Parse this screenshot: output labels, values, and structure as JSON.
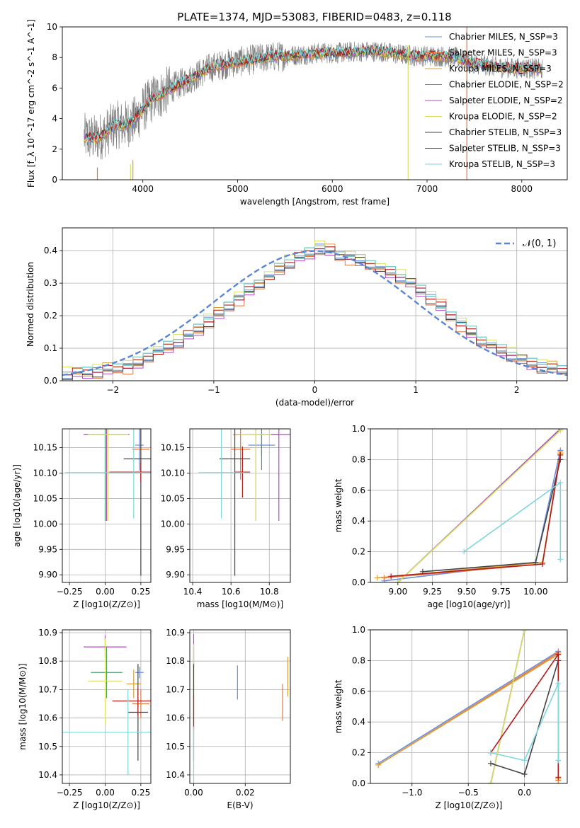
{
  "figure": {
    "title": "PLATE=1374, MJD=53083, FIBERID=0483, z=0.118"
  },
  "colors": {
    "Chabrier MILES": "#6a8ed8",
    "Salpeter MILES": "#e8743b",
    "Kroupa MILES": "#d9a13a",
    "Chabrier ELODIE": "#4f9a6b",
    "Salpeter ELODIE": "#b44bc4",
    "Kroupa ELODIE": "#d8e060",
    "Chabrier STELIB": "#444444",
    "Salpeter STELIB": "#b31b1b",
    "Kroupa STELIB": "#7fd6dd",
    "data": "#808080",
    "gaussian": "#5b86d8"
  },
  "chart_data": [
    {
      "id": "spectrum",
      "type": "line",
      "title": "PLATE=1374, MJD=53083, FIBERID=0483, z=0.118",
      "xlabel": "wavelength [Angstrom, rest frame]",
      "ylabel": "Flux [f_λ 10^-17 erg cm^-2 s^-1 A^-1]",
      "xlim": [
        3150,
        8480
      ],
      "ylim": [
        0,
        10
      ],
      "xticks": [
        4000,
        5000,
        6000,
        7000,
        8000
      ],
      "yticks": [
        0,
        2,
        4,
        6,
        8,
        10
      ],
      "grid": false,
      "legend": "right",
      "legend_entries": [
        "Chabrier MILES, N_SSP=3",
        "Salpeter MILES, N_SSP=3",
        "Kroupa MILES, N_SSP=3",
        "Chabrier ELODIE, N_SSP=2",
        "Salpeter ELODIE, N_SSP=2",
        "Kroupa ELODIE, N_SSP=2",
        "Chabrier STELIB, N_SSP=3",
        "Salpeter STELIB, N_SSP=3",
        "Kroupa STELIB, N_SSP=3"
      ],
      "data_envelope": {
        "x": [
          3380,
          3500,
          3600,
          3700,
          3800,
          3900,
          4000,
          4100,
          4200,
          4300,
          4500,
          4700,
          4900,
          5100,
          5300,
          5500,
          5700,
          5900,
          6100,
          6300,
          6500,
          6700,
          6900,
          7100,
          7300,
          7500,
          7700,
          7900,
          8100,
          8220
        ],
        "y": [
          2.8,
          2.7,
          3.0,
          3.6,
          3.6,
          3.8,
          4.6,
          5.3,
          5.6,
          6.0,
          6.6,
          7.3,
          7.6,
          7.8,
          8.0,
          8.1,
          8.2,
          8.3,
          8.3,
          8.4,
          8.4,
          8.2,
          8.1,
          8.1,
          8.0,
          7.6,
          7.4,
          7.3,
          7.3,
          7.2
        ]
      },
      "vertical_spikes": [
        {
          "x": 3520,
          "y_top": 0.8,
          "series": "Salpeter MILES"
        },
        {
          "x": 3870,
          "y_top": 1.0,
          "series": "Kroupa ELODIE"
        },
        {
          "x": 3895,
          "y_top": 1.3,
          "series": "Kroupa MILES"
        },
        {
          "x": 6800,
          "y_top": 8.8,
          "series": "Kroupa ELODIE"
        },
        {
          "x": 7420,
          "y_top": 10.0,
          "series": "Salpeter MILES"
        }
      ]
    },
    {
      "id": "residuals",
      "type": "step",
      "xlabel": "(data-model)/error",
      "ylabel": "Normed distribution",
      "xlim": [
        -2.5,
        2.5
      ],
      "ylim": [
        0,
        0.47
      ],
      "xticks": [
        -2,
        -1,
        0,
        1,
        2
      ],
      "yticks": [
        0.0,
        0.1,
        0.2,
        0.3,
        0.4
      ],
      "grid": true,
      "legend": "top-right",
      "gaussian_label": "𝒩(0, 1)",
      "bin_edges_start": -2.5,
      "bin_width": 0.1,
      "base_hist": [
        0.02,
        0.025,
        0.028,
        0.03,
        0.035,
        0.04,
        0.045,
        0.055,
        0.075,
        0.09,
        0.105,
        0.12,
        0.14,
        0.16,
        0.185,
        0.205,
        0.23,
        0.255,
        0.28,
        0.3,
        0.32,
        0.345,
        0.365,
        0.38,
        0.395,
        0.41,
        0.4,
        0.385,
        0.38,
        0.37,
        0.36,
        0.345,
        0.335,
        0.32,
        0.3,
        0.28,
        0.255,
        0.23,
        0.2,
        0.175,
        0.15,
        0.125,
        0.11,
        0.095,
        0.08,
        0.065,
        0.055,
        0.045,
        0.04,
        0.035
      ]
    },
    {
      "id": "age-vs-Z",
      "type": "errorbar",
      "xlabel": "Z [log10(Z/Z⊙)]",
      "ylabel": "age  [log10(age/yr)]",
      "xlim": [
        -0.3,
        0.32
      ],
      "ylim": [
        9.885,
        10.187
      ],
      "xticks": [
        -0.25,
        0.0,
        0.25
      ],
      "yticks": [
        9.9,
        9.95,
        10.0,
        10.05,
        10.1,
        10.15
      ],
      "grid": true,
      "points": [
        {
          "series": "Chabrier MILES",
          "x": 0.24,
          "y": 10.155,
          "xerr": 0.03,
          "yerr": 0.05
        },
        {
          "series": "Salpeter MILES",
          "x": 0.25,
          "y": 10.147,
          "xerr": 0.06,
          "yerr": 0.06
        },
        {
          "series": "Kroupa MILES",
          "x": 0.01,
          "y": 10.176,
          "xerr": 0.13,
          "yerr": 0.17
        },
        {
          "series": "Chabrier ELODIE",
          "x": 0.0,
          "y": 10.176,
          "xerr": 0.15,
          "yerr": 0.17
        },
        {
          "series": "Salpeter ELODIE",
          "x": 0.01,
          "y": 10.176,
          "xerr": 0.16,
          "yerr": 0.17
        },
        {
          "series": "Kroupa ELODIE",
          "x": 0.02,
          "y": 10.176,
          "xerr": 0.14,
          "yerr": 0.17
        },
        {
          "series": "Chabrier STELIB",
          "x": 0.25,
          "y": 10.128,
          "xerr": 0.12,
          "yerr": 0.23
        },
        {
          "series": "Salpeter STELIB",
          "x": 0.25,
          "y": 10.102,
          "xerr": 0.22,
          "yerr": 0.02
        },
        {
          "series": "Kroupa STELIB",
          "x": 0.2,
          "y": 10.101,
          "xerr": 0.48,
          "yerr": 0.09
        }
      ]
    },
    {
      "id": "age-vs-mass",
      "type": "errorbar",
      "xlabel": "mass [log10(M/M⊙)]",
      "ylabel": "",
      "xlim": [
        10.385,
        10.91
      ],
      "ylim": [
        9.885,
        10.187
      ],
      "xticks": [
        10.4,
        10.6,
        10.8
      ],
      "yticks": [
        9.9,
        9.95,
        10.0,
        10.05,
        10.1,
        10.15
      ],
      "grid": true,
      "points": [
        {
          "series": "Chabrier MILES",
          "x": 10.76,
          "y": 10.155,
          "xerr": 0.07,
          "yerr": 0.02
        },
        {
          "series": "Salpeter MILES",
          "x": 10.65,
          "y": 10.147,
          "xerr": 0.05,
          "yerr": 0.06
        },
        {
          "series": "Kroupa MILES",
          "x": 10.73,
          "y": 10.176,
          "xerr": 0.12,
          "yerr": 0.17
        },
        {
          "series": "Chabrier ELODIE",
          "x": 10.76,
          "y": 10.176,
          "xerr": 0.09,
          "yerr": 0.07
        },
        {
          "series": "Salpeter ELODIE",
          "x": 10.85,
          "y": 10.176,
          "xerr": 0.09,
          "yerr": 0.17
        },
        {
          "series": "Kroupa ELODIE",
          "x": 10.73,
          "y": 10.176,
          "xerr": 0.08,
          "yerr": 0.17
        },
        {
          "series": "Chabrier STELIB",
          "x": 10.62,
          "y": 10.128,
          "xerr": 0.08,
          "yerr": 0.23
        },
        {
          "series": "Salpeter STELIB",
          "x": 10.66,
          "y": 10.102,
          "xerr": 0.04,
          "yerr": 0.05
        },
        {
          "series": "Kroupa STELIB",
          "x": 10.55,
          "y": 10.101,
          "xerr": 0.12,
          "yerr": 0.09
        }
      ]
    },
    {
      "id": "weight-vs-age",
      "type": "line",
      "xlabel": "age  [log10(age/yr)]",
      "ylabel": "mass weight",
      "xlim": [
        8.8,
        10.23
      ],
      "ylim": [
        0,
        1
      ],
      "xticks": [
        9.0,
        9.25,
        9.5,
        9.75,
        10.0
      ],
      "yticks": [
        0.0,
        0.2,
        0.4,
        0.6,
        0.8,
        1.0
      ],
      "grid": true,
      "series": [
        {
          "name": "Chabrier MILES",
          "x": [
            8.9,
            10.0,
            10.18
          ],
          "y": [
            0.01,
            0.13,
            0.86
          ]
        },
        {
          "name": "Salpeter MILES",
          "x": [
            8.9,
            10.05,
            10.18
          ],
          "y": [
            0.03,
            0.12,
            0.85
          ]
        },
        {
          "name": "Kroupa MILES",
          "x": [
            8.85,
            10.05,
            10.18
          ],
          "y": [
            0.03,
            0.13,
            0.84
          ]
        },
        {
          "name": "Chabrier ELODIE",
          "x": [
            9.0,
            10.18
          ],
          "y": [
            0.0,
            1.0
          ]
        },
        {
          "name": "Salpeter ELODIE",
          "x": [
            9.0,
            10.18
          ],
          "y": [
            0.0,
            1.0
          ]
        },
        {
          "name": "Kroupa ELODIE",
          "x": [
            9.0,
            10.18
          ],
          "y": [
            0.0,
            0.99
          ]
        },
        {
          "name": "Chabrier STELIB",
          "x": [
            9.18,
            10.0,
            10.18
          ],
          "y": [
            0.07,
            0.13,
            0.8
          ]
        },
        {
          "name": "Salpeter STELIB",
          "x": [
            8.95,
            10.05,
            10.18
          ],
          "y": [
            0.04,
            0.12,
            0.83
          ]
        },
        {
          "name": "Kroupa STELIB",
          "x": [
            9.48,
            10.18,
            10.18
          ],
          "y": [
            0.2,
            0.65,
            0.15
          ]
        }
      ]
    },
    {
      "id": "mass-vs-Z",
      "type": "errorbar",
      "xlabel": "Z [log10(Z/Z⊙)]",
      "ylabel": "mass [log10(M/M⊙)]",
      "xlim": [
        -0.3,
        0.32
      ],
      "ylim": [
        10.37,
        10.91
      ],
      "xticks": [
        -0.25,
        0.0,
        0.25
      ],
      "yticks": [
        10.4,
        10.5,
        10.6,
        10.7,
        10.8,
        10.9
      ],
      "grid": true,
      "points": [
        {
          "series": "Chabrier MILES",
          "x": 0.24,
          "y": 10.76,
          "xerr": 0.03,
          "yerr": 0.02
        },
        {
          "series": "Salpeter MILES",
          "x": 0.25,
          "y": 10.65,
          "xerr": 0.06,
          "yerr": 0.05
        },
        {
          "series": "Kroupa MILES",
          "x": 0.2,
          "y": 10.72,
          "xerr": 0.05,
          "yerr": 0.05
        },
        {
          "series": "Chabrier ELODIE",
          "x": 0.01,
          "y": 10.76,
          "xerr": 0.11,
          "yerr": 0.09
        },
        {
          "series": "Salpeter ELODIE",
          "x": 0.0,
          "y": 10.85,
          "xerr": 0.15,
          "yerr": 0.04
        },
        {
          "series": "Kroupa ELODIE",
          "x": 0.0,
          "y": 10.73,
          "xerr": 0.12,
          "yerr": 0.15
        },
        {
          "series": "Chabrier STELIB",
          "x": 0.23,
          "y": 10.62,
          "xerr": 0.07,
          "yerr": 0.17
        },
        {
          "series": "Salpeter STELIB",
          "x": 0.23,
          "y": 10.66,
          "xerr": 0.18,
          "yerr": 0.05
        },
        {
          "series": "Kroupa STELIB",
          "x": 0.16,
          "y": 10.55,
          "xerr": 0.46,
          "yerr": 0.15
        }
      ]
    },
    {
      "id": "mass-vs-ebv",
      "type": "errorbar",
      "xlabel": "E(B-V)",
      "ylabel": "",
      "xlim": [
        -0.0015,
        0.0375
      ],
      "ylim": [
        10.37,
        10.91
      ],
      "xticks": [
        0.0,
        0.02
      ],
      "yticks": [
        10.4,
        10.5,
        10.6,
        10.7,
        10.8,
        10.9
      ],
      "grid": true,
      "points": [
        {
          "series": "Chabrier MILES",
          "x": 0.017,
          "y": 10.725,
          "xerr": 0,
          "yerr": 0.06
        },
        {
          "series": "Salpeter MILES",
          "x": 0.0345,
          "y": 10.655,
          "xerr": 0,
          "yerr": 0.065
        },
        {
          "series": "Kroupa MILES",
          "x": 0.0365,
          "y": 10.745,
          "xerr": 0,
          "yerr": 0.07
        },
        {
          "series": "Chabrier ELODIE",
          "x": 0.0,
          "y": 10.76,
          "xerr": 0,
          "yerr": 0.09
        },
        {
          "series": "Salpeter ELODIE",
          "x": 0.0,
          "y": 10.835,
          "xerr": 0,
          "yerr": 0.06
        },
        {
          "series": "Kroupa ELODIE",
          "x": 0.0,
          "y": 10.73,
          "xerr": 0,
          "yerr": 0.13
        },
        {
          "series": "Chabrier STELIB",
          "x": 0.0,
          "y": 10.62,
          "xerr": 0,
          "yerr": 0.17
        },
        {
          "series": "Salpeter STELIB",
          "x": 0.0,
          "y": 10.62,
          "xerr": 0,
          "yerr": 0.06
        },
        {
          "series": "Kroupa STELIB",
          "x": 0.0,
          "y": 10.47,
          "xerr": 0,
          "yerr": 0.1
        }
      ]
    },
    {
      "id": "weight-vs-Z",
      "type": "line",
      "xlabel": "Z [log10(Z/Z⊙)]",
      "ylabel": "mass weight",
      "xlim": [
        -1.37,
        0.38
      ],
      "ylim": [
        0,
        1
      ],
      "xticks": [
        -1.0,
        -0.5,
        0.0
      ],
      "yticks": [
        0.0,
        0.2,
        0.4,
        0.6,
        0.8,
        1.0
      ],
      "grid": true,
      "series": [
        {
          "name": "Chabrier MILES",
          "x": [
            -1.3,
            0.3
          ],
          "y": [
            0.13,
            0.86
          ]
        },
        {
          "name": "Salpeter MILES",
          "x": [
            -1.3,
            0.3,
            0.3
          ],
          "y": [
            0.12,
            0.85,
            0.02
          ]
        },
        {
          "name": "Kroupa MILES",
          "x": [
            -1.3,
            0.3,
            0.3
          ],
          "y": [
            0.12,
            0.84,
            0.03
          ]
        },
        {
          "name": "Chabrier ELODIE",
          "x": [
            -0.3,
            0.0
          ],
          "y": [
            0.0,
            1.0
          ]
        },
        {
          "name": "Salpeter ELODIE",
          "x": [
            -0.3,
            0.0
          ],
          "y": [
            0.0,
            1.0
          ]
        },
        {
          "name": "Kroupa ELODIE",
          "x": [
            -0.3,
            0.0
          ],
          "y": [
            0.0,
            1.0
          ]
        },
        {
          "name": "Chabrier STELIB",
          "x": [
            -0.3,
            0.0,
            0.3
          ],
          "y": [
            0.13,
            0.06,
            0.8
          ]
        },
        {
          "name": "Salpeter STELIB",
          "x": [
            -0.3,
            0.3,
            0.3
          ],
          "y": [
            0.2,
            0.84,
            0.04
          ]
        },
        {
          "name": "Kroupa STELIB",
          "x": [
            -0.3,
            0.0,
            0.3,
            0.3
          ],
          "y": [
            0.2,
            0.15,
            0.65,
            0.15
          ]
        }
      ]
    }
  ]
}
